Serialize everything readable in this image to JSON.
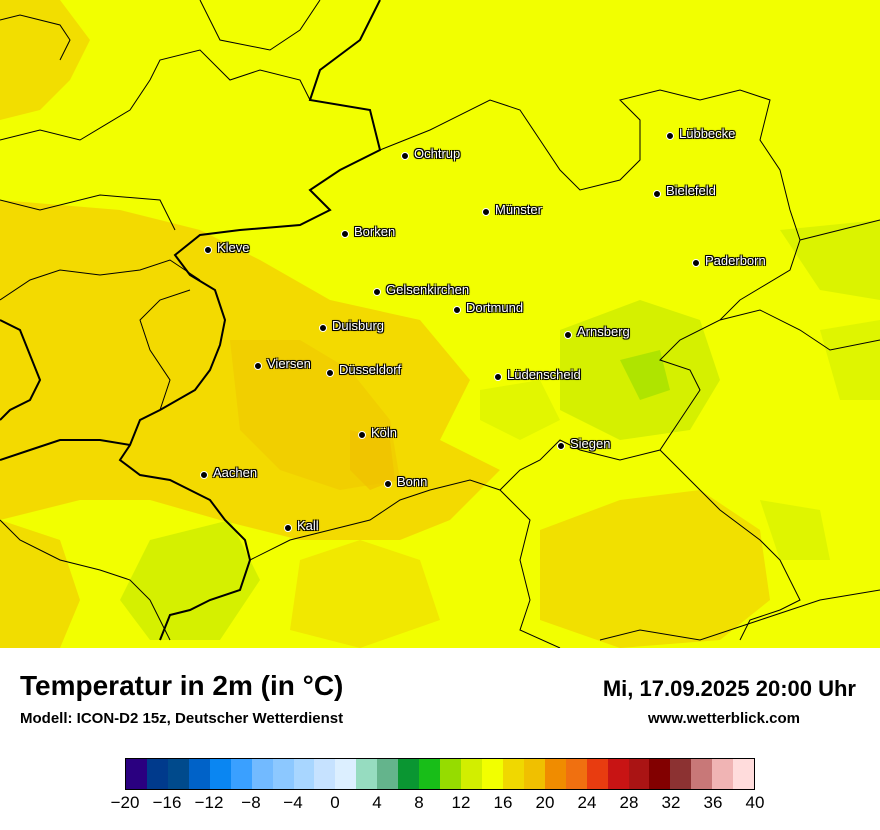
{
  "title": "Temperatur in 2m (in °C)",
  "model": "Modell: ICON-D2 15z, Deutscher Wetterdienst",
  "datetime": "Mi, 17.09.2025 20:00 Uhr",
  "website": "www.wetterblick.com",
  "cities": [
    "Lübbecke",
    "Ochtrup",
    "Bielefeld",
    "Münster",
    "Borken",
    "Kleve",
    "Paderborn",
    "Gelsenkirchen",
    "Dortmund",
    "Duisburg",
    "Arnsberg",
    "Viersen",
    "Düsseldorf",
    "Lüdenscheid",
    "Köln",
    "Siegen",
    "Aachen",
    "Bonn",
    "Kall"
  ],
  "legend": {
    "ticks": [
      "−20",
      "−16",
      "−12",
      "−8",
      "−4",
      "0",
      "4",
      "8",
      "12",
      "16",
      "20",
      "24",
      "28",
      "32",
      "36",
      "40"
    ],
    "colors": [
      "#2a0080",
      "#003a8c",
      "#004a8c",
      "#0062c8",
      "#0a86f2",
      "#3aa0ff",
      "#72baff",
      "#8cc8ff",
      "#a8d6ff",
      "#c6e2ff",
      "#dcefff",
      "#96dcc0",
      "#64b48c",
      "#0a9632",
      "#18be18",
      "#96dc00",
      "#d2ee00",
      "#f2ff00",
      "#f0d800",
      "#f0c000",
      "#f08c00",
      "#f07010",
      "#e83c10",
      "#c81414",
      "#aa1414",
      "#820000",
      "#8c3232",
      "#c87878",
      "#f0b4b4",
      "#ffdcdc"
    ]
  }
}
